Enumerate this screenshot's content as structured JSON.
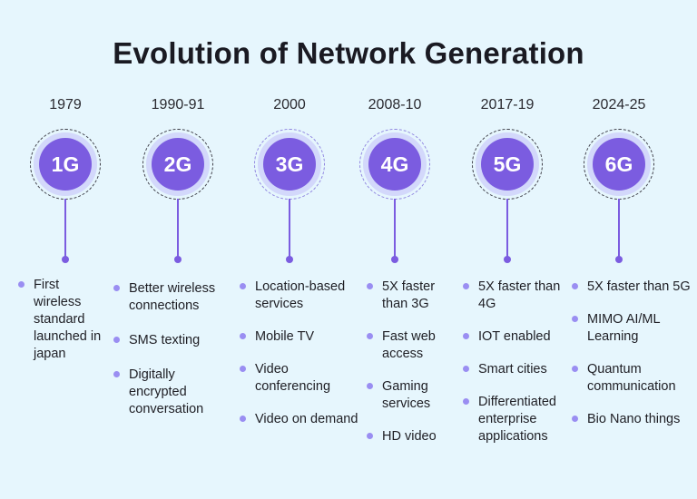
{
  "title": "Evolution of Network Generation",
  "generations": [
    {
      "year": "1979",
      "label": "1G",
      "items": [
        "First wireless standard launched in japan"
      ]
    },
    {
      "year": "1990-91",
      "label": "2G",
      "items": [
        "Better wireless connections",
        "SMS texting",
        "Digitally encrypted conversation"
      ]
    },
    {
      "year": "2000",
      "label": "3G",
      "items": [
        "Location-based services",
        "Mobile TV",
        "Video conferencing",
        "Video on demand"
      ]
    },
    {
      "year": "2008-10",
      "label": "4G",
      "items": [
        "5X faster than 3G",
        "Fast web access",
        "Gaming services",
        "HD video"
      ]
    },
    {
      "year": "2017-19",
      "label": "5G",
      "items": [
        "5X faster than 4G",
        "IOT enabled",
        "Smart cities",
        "Differentiated enterprise applications"
      ]
    },
    {
      "year": "2024-25",
      "label": "6G",
      "items": [
        "5X faster than 5G",
        "MIMO AI/ML Learning",
        "Quantum communication",
        "Bio Nano things"
      ]
    }
  ],
  "colors": {
    "background": "#e6f6fd",
    "accent": "#7b5ce0",
    "bullet": "#9a8ef2"
  }
}
